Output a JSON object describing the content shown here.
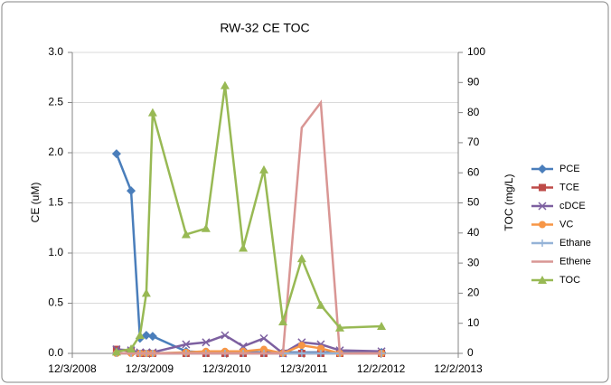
{
  "chart_data": {
    "type": "line",
    "title": "RW-32 CE TOC",
    "y_label": "CE (uM)",
    "y2_label": "TOC (mg/L)",
    "x": [
      "2009-06-30",
      "2009-09-07",
      "2009-10-19",
      "2009-11-18",
      "2009-12-18",
      "2010-05-25",
      "2010-08-27",
      "2010-11-25",
      "2011-02-19",
      "2011-05-28",
      "2011-08-26",
      "2011-11-23",
      "2012-02-21",
      "2012-05-21",
      "2012-12-04"
    ],
    "xlim": [
      "2008-12-03",
      "2013-12-02"
    ],
    "xticks": [
      {
        "value": "2008-12-03",
        "label": "12/3/2008"
      },
      {
        "value": "2009-12-03",
        "label": "12/3/2009"
      },
      {
        "value": "2010-12-03",
        "label": "12/3/2010"
      },
      {
        "value": "2011-12-03",
        "label": "12/3/2011"
      },
      {
        "value": "2012-12-02",
        "label": "12/2/2012"
      },
      {
        "value": "2013-12-02",
        "label": "12/2/2013"
      }
    ],
    "ylim": [
      0,
      3
    ],
    "yticks": [
      {
        "value": 0,
        "label": "0.0"
      },
      {
        "value": 0.5,
        "label": "0.5"
      },
      {
        "value": 1,
        "label": "1.0"
      },
      {
        "value": 1.5,
        "label": "1.5"
      },
      {
        "value": 2,
        "label": "2.0"
      },
      {
        "value": 2.5,
        "label": "2.5"
      },
      {
        "value": 3,
        "label": "3.0"
      }
    ],
    "y2lim": [
      0,
      100
    ],
    "y2ticks": [
      0,
      10,
      20,
      30,
      40,
      50,
      60,
      70,
      80,
      90,
      100
    ],
    "grid": true,
    "legend": "right",
    "series": [
      {
        "name": "PCE",
        "color": "#4a7ebb",
        "marker": "diamond",
        "values": [
          1.99,
          1.62,
          0.15,
          0.18,
          0.17,
          0.02,
          0.01,
          0.01,
          0.01,
          0.01,
          0.01,
          0.01,
          0.01,
          0.01,
          0.01
        ]
      },
      {
        "name": "TCE",
        "color": "#be4b48",
        "marker": "square",
        "values": [
          0.04,
          0.02,
          0,
          0,
          0,
          0,
          0,
          0,
          0,
          0,
          0,
          0,
          0,
          0,
          0
        ]
      },
      {
        "name": "cDCE",
        "color": "#7d60a0",
        "marker": "x",
        "values": [
          0.04,
          0.03,
          0.01,
          0.01,
          0.01,
          0.09,
          0.11,
          0.18,
          0.07,
          0.15,
          0,
          0.11,
          0.09,
          0.03,
          0.02
        ]
      },
      {
        "name": "VC",
        "color": "#f79646",
        "marker": "circle",
        "values": [
          0,
          0,
          0,
          0,
          0,
          0.01,
          0.02,
          0.02,
          0.02,
          0.04,
          0,
          0.08,
          0.05,
          0,
          0
        ]
      },
      {
        "name": "Ethane",
        "color": "#95b3d7",
        "marker": "plus",
        "values": [
          0,
          0,
          0,
          0,
          0,
          0,
          0,
          0,
          0,
          0,
          0,
          0,
          0,
          0,
          0
        ]
      },
      {
        "name": "Ethene",
        "color": "#d99694",
        "marker": "none",
        "values": [
          0,
          0,
          0,
          0,
          0,
          0,
          0,
          0,
          0,
          0,
          0,
          2.25,
          2.5,
          0,
          0
        ]
      },
      {
        "name": "TOC",
        "color": "#98b954",
        "marker": "triangle",
        "axis": "y2",
        "values": [
          0.5,
          1.5,
          6,
          20,
          80,
          39.5,
          41.5,
          89,
          35,
          61,
          10.5,
          31.5,
          16,
          8.5,
          9
        ]
      }
    ]
  }
}
